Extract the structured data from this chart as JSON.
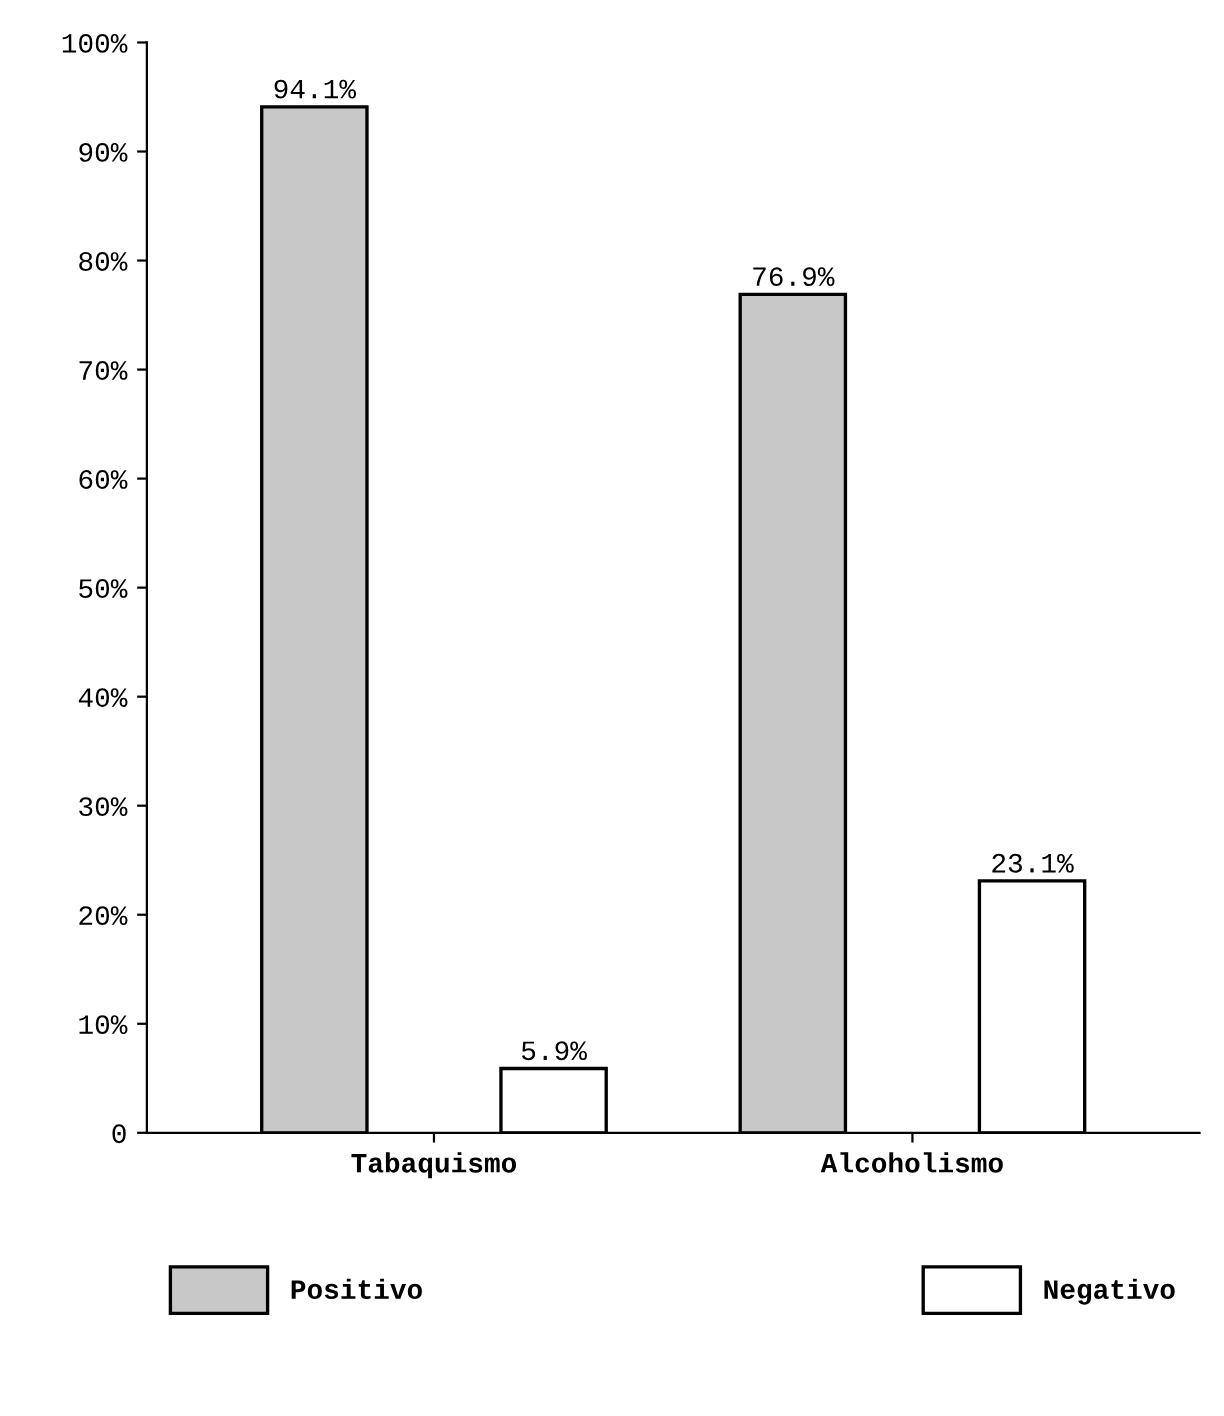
{
  "chart_data": {
    "type": "bar",
    "categories": [
      "Tabaquismo",
      "Alcoholismo"
    ],
    "series": [
      {
        "name": "Positivo",
        "color": "#c8c8c8",
        "values": [
          94.1,
          76.9
        ],
        "value_labels": [
          "94.1%",
          "76.9%"
        ]
      },
      {
        "name": "Negativo",
        "color": "#ffffff",
        "values": [
          5.9,
          23.1
        ],
        "value_labels": [
          "5.9%",
          "23.1%"
        ]
      }
    ],
    "ylim": [
      0,
      100
    ],
    "yticks": [
      0,
      {
        "value": 10,
        "label": "10%"
      },
      {
        "value": 20,
        "label": "20%"
      },
      {
        "value": 30,
        "label": "30%"
      },
      {
        "value": 40,
        "label": "40%"
      },
      {
        "value": 50,
        "label": "50%"
      },
      {
        "value": 60,
        "label": "60%"
      },
      {
        "value": 70,
        "label": "70%"
      },
      {
        "value": 80,
        "label": "80%"
      },
      {
        "value": 90,
        "label": "90%"
      },
      {
        "value": 100,
        "label": "100%"
      }
    ],
    "grid": false,
    "legend": "bottom"
  }
}
